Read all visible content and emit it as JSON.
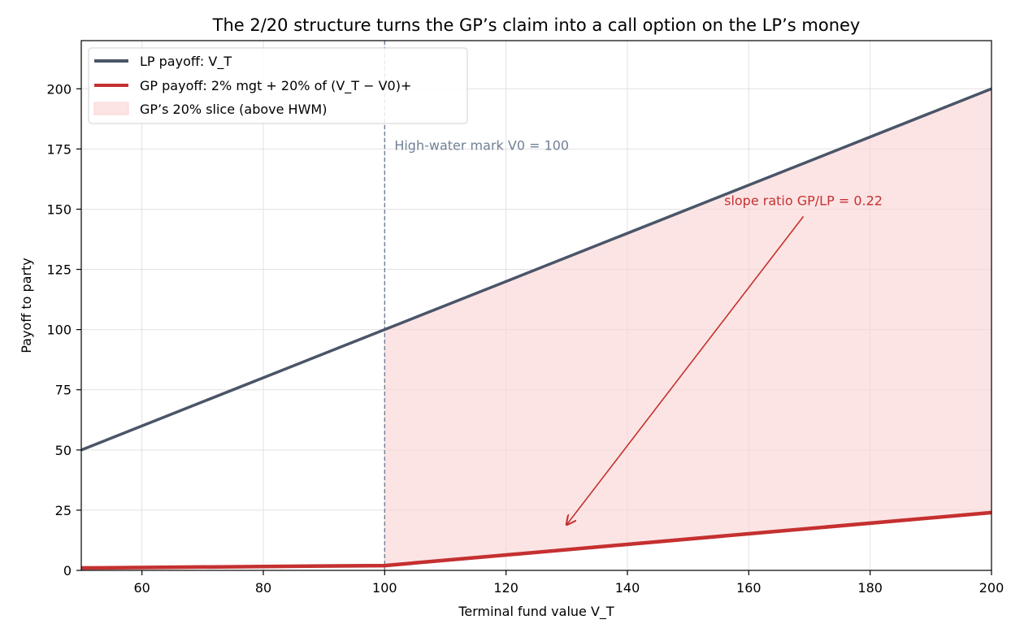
{
  "chart_data": {
    "type": "line",
    "title": "The 2/20 structure turns the GP’s claim into a call option on the LP’s money",
    "xlabel": "Terminal fund value V_T",
    "ylabel": "Payoff to party",
    "xlim": [
      50,
      200
    ],
    "ylim": [
      0,
      220
    ],
    "xticks": [
      60,
      80,
      100,
      120,
      140,
      160,
      180,
      200
    ],
    "yticks": [
      0,
      25,
      50,
      75,
      100,
      125,
      150,
      175,
      200
    ],
    "grid": true,
    "legend_position": "top-left",
    "series": [
      {
        "name": "LP payoff: V_T",
        "color": "#4a5568",
        "points": [
          [
            50,
            50
          ],
          [
            100,
            100
          ],
          [
            200,
            200
          ]
        ]
      },
      {
        "name": "GP payoff: 2% mgt + 20% of (V_T − V0)+",
        "color": "#c53030",
        "points": [
          [
            50,
            1
          ],
          [
            100,
            2
          ],
          [
            200,
            24
          ]
        ]
      }
    ],
    "fill": {
      "name": "GP’s 20% slice (above HWM)",
      "color": "#fbd5d5",
      "x_from": 100,
      "x_to": 200
    },
    "vline": {
      "x": 100,
      "label": "High-water mark V0 = 100",
      "color": "#718096"
    },
    "annotation": {
      "text": "slope ratio GP/LP = 0.22",
      "color": "#c53030",
      "arrow_from": [
        169,
        147
      ],
      "arrow_to": [
        130,
        19
      ]
    }
  }
}
